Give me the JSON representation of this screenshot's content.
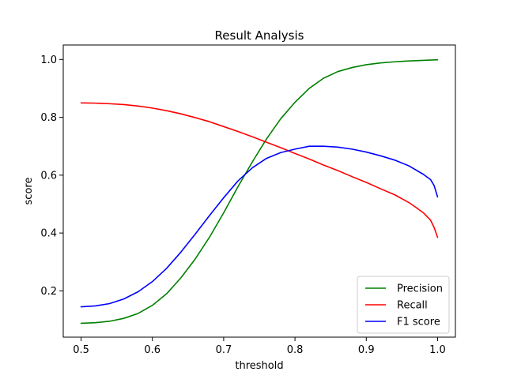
{
  "chart_data": {
    "type": "line",
    "title": "Result Analysis",
    "xlabel": "threshold",
    "ylabel": "score",
    "xlim": [
      0.475,
      1.025
    ],
    "ylim": [
      0.04,
      1.05
    ],
    "x_ticks": [
      0.5,
      0.6,
      0.7,
      0.8,
      0.9,
      1.0
    ],
    "x_tick_labels": [
      "0.5",
      "0.6",
      "0.7",
      "0.8",
      "0.9",
      "1.0"
    ],
    "y_ticks": [
      0.2,
      0.4,
      0.6,
      0.8,
      1.0
    ],
    "y_tick_labels": [
      "0.2",
      "0.4",
      "0.6",
      "0.8",
      "1.0"
    ],
    "grid": false,
    "legend_position": "lower right",
    "series": [
      {
        "name": "Precision",
        "color": "#008000",
        "x": [
          0.5,
          0.52,
          0.54,
          0.56,
          0.58,
          0.6,
          0.62,
          0.64,
          0.66,
          0.68,
          0.7,
          0.72,
          0.74,
          0.76,
          0.78,
          0.8,
          0.82,
          0.84,
          0.86,
          0.88,
          0.9,
          0.92,
          0.94,
          0.96,
          0.98,
          1.0
        ],
        "values": [
          0.088,
          0.09,
          0.095,
          0.105,
          0.122,
          0.15,
          0.19,
          0.245,
          0.31,
          0.385,
          0.47,
          0.56,
          0.645,
          0.725,
          0.795,
          0.852,
          0.9,
          0.935,
          0.958,
          0.972,
          0.982,
          0.988,
          0.992,
          0.995,
          0.997,
          0.999
        ]
      },
      {
        "name": "Recall",
        "color": "#ff0000",
        "x": [
          0.5,
          0.52,
          0.54,
          0.56,
          0.58,
          0.6,
          0.62,
          0.64,
          0.66,
          0.68,
          0.7,
          0.72,
          0.74,
          0.76,
          0.78,
          0.8,
          0.82,
          0.84,
          0.86,
          0.88,
          0.9,
          0.92,
          0.94,
          0.96,
          0.97,
          0.98,
          0.99,
          0.995,
          1.0
        ],
        "values": [
          0.85,
          0.849,
          0.847,
          0.844,
          0.839,
          0.832,
          0.823,
          0.812,
          0.799,
          0.785,
          0.768,
          0.751,
          0.733,
          0.714,
          0.695,
          0.675,
          0.656,
          0.635,
          0.616,
          0.595,
          0.575,
          0.553,
          0.532,
          0.505,
          0.488,
          0.47,
          0.445,
          0.42,
          0.385
        ]
      },
      {
        "name": "F1 score",
        "color": "#0000ff",
        "x": [
          0.5,
          0.52,
          0.54,
          0.56,
          0.58,
          0.6,
          0.62,
          0.64,
          0.66,
          0.68,
          0.7,
          0.72,
          0.74,
          0.76,
          0.78,
          0.8,
          0.82,
          0.84,
          0.86,
          0.88,
          0.9,
          0.92,
          0.94,
          0.96,
          0.98,
          0.99,
          0.995,
          1.0
        ],
        "values": [
          0.145,
          0.148,
          0.156,
          0.172,
          0.197,
          0.232,
          0.278,
          0.334,
          0.396,
          0.46,
          0.522,
          0.58,
          0.625,
          0.658,
          0.678,
          0.69,
          0.7,
          0.7,
          0.697,
          0.69,
          0.68,
          0.667,
          0.652,
          0.632,
          0.603,
          0.585,
          0.565,
          0.525
        ]
      }
    ]
  }
}
